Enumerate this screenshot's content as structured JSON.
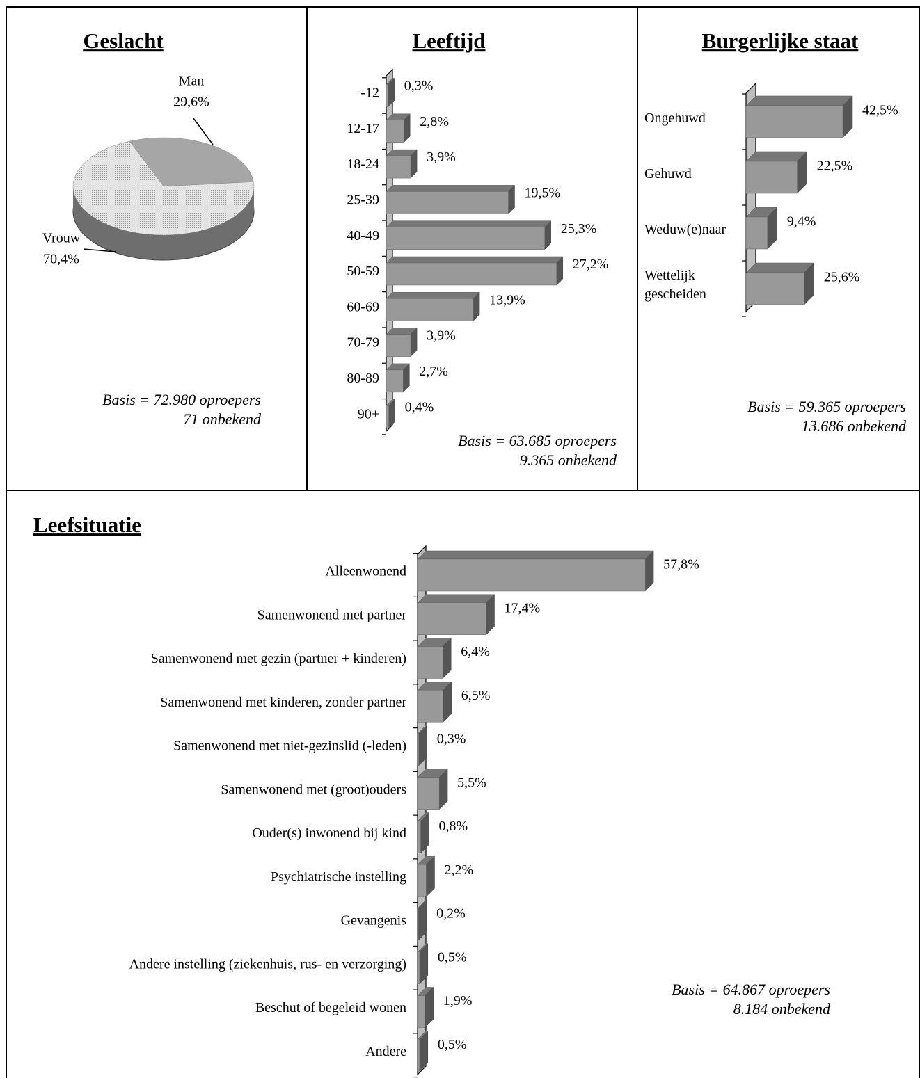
{
  "chart_data": [
    {
      "type": "pie",
      "title": "Geslacht",
      "categories": [
        "Man",
        "Vrouw"
      ],
      "values": [
        29.6,
        70.4
      ],
      "value_labels": [
        "29,6%",
        "70,4%"
      ],
      "colors": [
        "#a6a6a6",
        "#dcdcdc"
      ],
      "notes": [
        "Basis = 72.980 oproepers",
        "71 onbekend"
      ]
    },
    {
      "type": "hbar",
      "title": "Leeftijd",
      "categories": [
        "-12",
        "12-17",
        "18-24",
        "25-39",
        "40-49",
        "50-59",
        "60-69",
        "70-79",
        "80-89",
        "90+"
      ],
      "values": [
        0.3,
        2.8,
        3.9,
        19.5,
        25.3,
        27.2,
        13.9,
        3.9,
        2.7,
        0.4
      ],
      "value_labels": [
        "0,3%",
        "2,8%",
        "3,9%",
        "19,5%",
        "25,3%",
        "27,2%",
        "13,9%",
        "3,9%",
        "2,7%",
        "0,4%"
      ],
      "color": "#999999",
      "notes": [
        "Basis = 63.685 oproepers",
        "9.365 onbekend"
      ]
    },
    {
      "type": "hbar",
      "title": "Burgerlijke staat",
      "categories": [
        "Ongehuwd",
        "Gehuwd",
        "Weduw(e)naar",
        "Wettelijk gescheiden"
      ],
      "values": [
        42.5,
        22.5,
        9.4,
        25.6
      ],
      "value_labels": [
        "42,5%",
        "22,5%",
        "9,4%",
        "25,6%"
      ],
      "color": "#999999",
      "notes": [
        "Basis = 59.365 oproepers",
        "13.686 onbekend"
      ]
    },
    {
      "type": "hbar",
      "title": "Leefsituatie",
      "categories": [
        "Alleenwonend",
        "Samenwonend met partner",
        "Samenwonend met gezin (partner + kinderen)",
        "Samenwonend met kinderen, zonder partner",
        "Samenwonend met niet-gezinslid (-leden)",
        "Samenwonend met (groot)ouders",
        "Ouder(s) inwonend bij kind",
        "Psychiatrische instelling",
        "Gevangenis",
        "Andere instelling (ziekenhuis, rus- en verzorging)",
        "Beschut of begeleid wonen",
        "Andere"
      ],
      "values": [
        57.8,
        17.4,
        6.4,
        6.5,
        0.3,
        5.5,
        0.8,
        2.2,
        0.2,
        0.5,
        1.9,
        0.5
      ],
      "value_labels": [
        "57,8%",
        "17,4%",
        "6,4%",
        "6,5%",
        "0,3%",
        "5,5%",
        "0,8%",
        "2,2%",
        "0,2%",
        "0,5%",
        "1,9%",
        "0,5%"
      ],
      "color": "#999999",
      "notes": [
        "Basis = 64.867 oproepers",
        "8.184 onbekend"
      ]
    }
  ]
}
